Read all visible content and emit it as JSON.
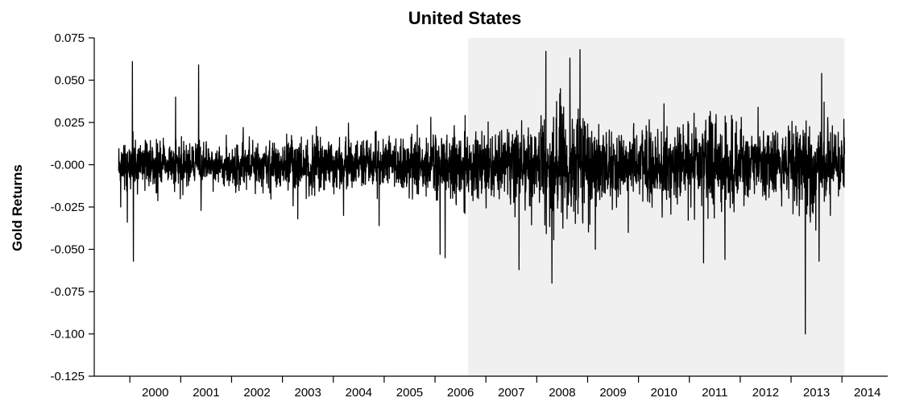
{
  "chart_data": {
    "type": "line",
    "title": "United States",
    "xlabel": "",
    "ylabel": "Gold Returns",
    "ylim": [
      -0.125,
      0.075
    ],
    "yticks": [
      "0.075",
      "0.050",
      "0.025",
      "-0.000",
      "-0.025",
      "-0.050",
      "-0.075",
      "-0.100",
      "-0.125"
    ],
    "ytick_values": [
      0.075,
      0.05,
      0.025,
      0.0,
      -0.025,
      -0.05,
      -0.075,
      -0.1,
      -0.125
    ],
    "xticks": [
      "2000",
      "2001",
      "2002",
      "2003",
      "2004",
      "2005",
      "2006",
      "2007",
      "2008",
      "2009",
      "2010",
      "2011",
      "2012",
      "2013",
      "2014"
    ],
    "xlim": [
      1999.3,
      2014.9
    ],
    "x_start": 1999.78,
    "x_end": 2014.05,
    "shaded_region": [
      2006.65,
      2014.05
    ],
    "shade_color": "#f0f0f0",
    "line_color": "#000000",
    "grid": false,
    "volatility_envelope": [
      {
        "x": 1999.8,
        "sd": 0.0075
      },
      {
        "x": 2000.5,
        "sd": 0.0065
      },
      {
        "x": 2001.0,
        "sd": 0.006
      },
      {
        "x": 2002.0,
        "sd": 0.0065
      },
      {
        "x": 2003.0,
        "sd": 0.0075
      },
      {
        "x": 2004.0,
        "sd": 0.008
      },
      {
        "x": 2005.0,
        "sd": 0.0075
      },
      {
        "x": 2005.8,
        "sd": 0.009
      },
      {
        "x": 2006.4,
        "sd": 0.0115
      },
      {
        "x": 2007.0,
        "sd": 0.0085
      },
      {
        "x": 2007.7,
        "sd": 0.0105
      },
      {
        "x": 2008.2,
        "sd": 0.015
      },
      {
        "x": 2008.8,
        "sd": 0.0165
      },
      {
        "x": 2009.3,
        "sd": 0.0115
      },
      {
        "x": 2010.0,
        "sd": 0.0095
      },
      {
        "x": 2011.0,
        "sd": 0.011
      },
      {
        "x": 2011.7,
        "sd": 0.0145
      },
      {
        "x": 2012.3,
        "sd": 0.0095
      },
      {
        "x": 2013.0,
        "sd": 0.0105
      },
      {
        "x": 2013.4,
        "sd": 0.0145
      },
      {
        "x": 2014.05,
        "sd": 0.0085
      }
    ],
    "spikes": [
      {
        "x": 1999.82,
        "y": -0.025
      },
      {
        "x": 1999.95,
        "y": -0.034
      },
      {
        "x": 2000.05,
        "y": 0.061
      },
      {
        "x": 2000.07,
        "y": -0.057
      },
      {
        "x": 2000.9,
        "y": 0.04
      },
      {
        "x": 2001.35,
        "y": 0.059
      },
      {
        "x": 2001.4,
        "y": -0.027
      },
      {
        "x": 2003.3,
        "y": -0.032
      },
      {
        "x": 2004.2,
        "y": -0.03
      },
      {
        "x": 2004.9,
        "y": -0.036
      },
      {
        "x": 2006.1,
        "y": -0.053
      },
      {
        "x": 2006.2,
        "y": -0.055
      },
      {
        "x": 2007.65,
        "y": -0.062
      },
      {
        "x": 2008.18,
        "y": 0.067
      },
      {
        "x": 2008.3,
        "y": -0.07
      },
      {
        "x": 2008.65,
        "y": 0.063
      },
      {
        "x": 2008.85,
        "y": 0.068
      },
      {
        "x": 2009.15,
        "y": -0.05
      },
      {
        "x": 2009.8,
        "y": -0.04
      },
      {
        "x": 2010.5,
        "y": 0.036
      },
      {
        "x": 2011.28,
        "y": -0.058
      },
      {
        "x": 2011.7,
        "y": -0.056
      },
      {
        "x": 2012.35,
        "y": 0.034
      },
      {
        "x": 2013.28,
        "y": -0.1
      },
      {
        "x": 2013.55,
        "y": -0.057
      },
      {
        "x": 2013.6,
        "y": 0.054
      },
      {
        "x": 2013.65,
        "y": 0.037
      }
    ]
  }
}
